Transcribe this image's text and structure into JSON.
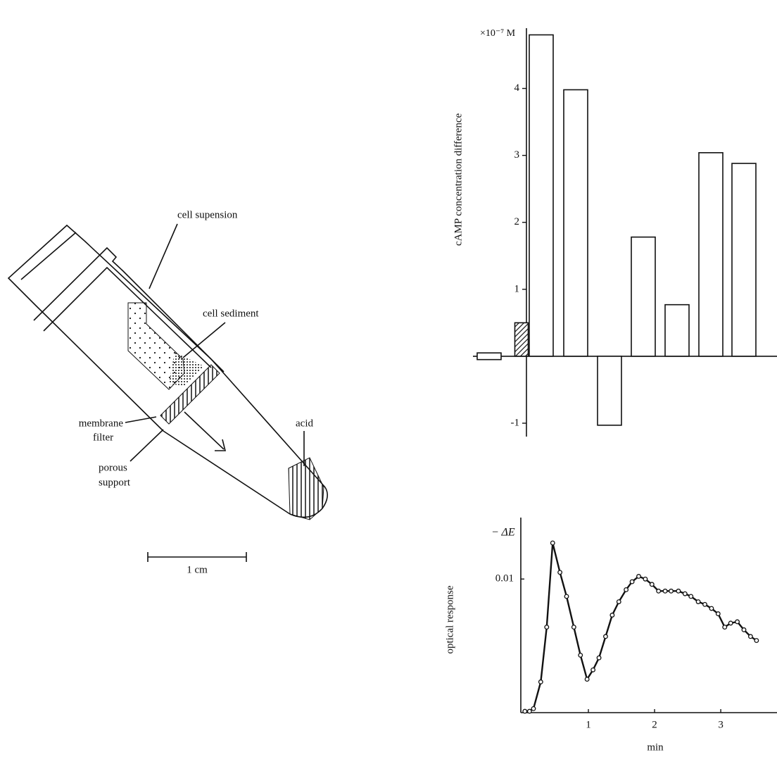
{
  "diagram": {
    "labels": {
      "suspension": "cell supension",
      "sediment": "cell sediment",
      "membrane": [
        "membrane",
        "filter"
      ],
      "support": [
        "porous",
        "support"
      ],
      "acid": "acid",
      "scale": "1 cm"
    }
  },
  "chart_data": [
    {
      "type": "bar",
      "y_label": "cAMP concentration difference",
      "unit_label": "×10⁻⁷ M",
      "categories": [
        null,
        null,
        null,
        null,
        null,
        null,
        null,
        null,
        null
      ],
      "values": [
        0.05,
        0.5,
        4.8,
        3.98,
        -1.03,
        1.78,
        0.77,
        3.04,
        2.88
      ],
      "fills": [
        "open",
        "hatched",
        "open",
        "open",
        "open",
        "open",
        "open",
        "open",
        "open"
      ],
      "color": "#111111",
      "ylim": [
        -1.2,
        4.9
      ],
      "yticks": [
        -1,
        1,
        2,
        3,
        4
      ]
    },
    {
      "type": "line",
      "y_label": "optical response",
      "unit_label": "− ΔE",
      "x_label": "min",
      "color": "#111111",
      "x": [
        0.04,
        0.11,
        0.17,
        0.28,
        0.37,
        0.46,
        0.57,
        0.67,
        0.78,
        0.88,
        0.98,
        1.07,
        1.16,
        1.26,
        1.36,
        1.46,
        1.57,
        1.66,
        1.76,
        1.86,
        1.96,
        2.06,
        2.16,
        2.25,
        2.36,
        2.46,
        2.55,
        2.66,
        2.76,
        2.86,
        2.96,
        3.06,
        3.15,
        3.25,
        3.35,
        3.45,
        3.54
      ],
      "series": [
        {
          "name": null,
          "values": [
            0.0001,
            0.0001,
            0.0003,
            0.0023,
            0.0064,
            0.0127,
            0.0105,
            0.0087,
            0.0064,
            0.0043,
            0.0025,
            0.0032,
            0.0041,
            0.0057,
            0.0073,
            0.0083,
            0.0092,
            0.0098,
            0.0102,
            0.01,
            0.0096,
            0.0091,
            0.0091,
            0.0091,
            0.0091,
            0.0089,
            0.0087,
            0.0083,
            0.0081,
            0.0078,
            0.0074,
            0.0064,
            0.0067,
            0.0068,
            0.0062,
            0.0057,
            0.0054
          ]
        }
      ],
      "xlim": [
        0,
        3.85
      ],
      "xticks": [
        1,
        2,
        3
      ],
      "ylim": [
        0,
        0.0146
      ],
      "yticks": [
        0.01
      ]
    }
  ]
}
